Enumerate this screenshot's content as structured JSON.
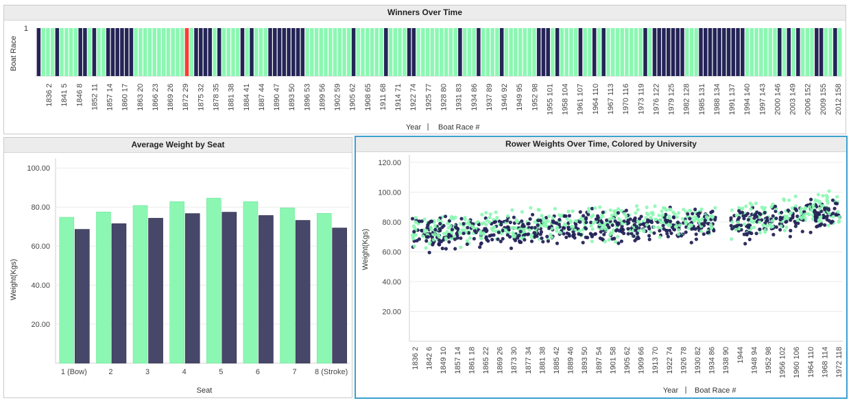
{
  "colors": {
    "cambridge": "#8bf7b2",
    "oxford": "#242457",
    "oxford_bar": "#474769",
    "highlight": "#ff3b30",
    "grid": "#ebebeb",
    "selected_border": "#3aa0d0"
  },
  "winners_panel": {
    "title": "Winners Over Time",
    "ylabel": "Boat Race",
    "ytick": "1",
    "xlabel_parts": [
      "Year",
      "|",
      "Boat Race #"
    ]
  },
  "weight_panel": {
    "title": "Average Weight by Seat",
    "ylabel": "Weight(Kgs)",
    "xlabel": "Seat",
    "yticks": [
      "100.00",
      "80.00",
      "60.00",
      "40.00",
      "20.00"
    ]
  },
  "scatter_panel": {
    "title": "Rower Weights Over Time, Colored by University",
    "ylabel": "Weight(Kgs)",
    "xlabel_parts": [
      "Year",
      "|",
      "Boat Race #"
    ],
    "yticks": [
      "120.00",
      "100.00",
      "80.00",
      "60.00",
      "40.00",
      "20.00"
    ]
  },
  "chart_data": [
    {
      "type": "bar",
      "title": "Winners Over Time",
      "ylabel": "Boat Race",
      "xlabel": "Year | Boat Race #",
      "ylim": [
        0,
        1
      ],
      "tick_labels": [
        "1836  2",
        "1841  5",
        "1846  8",
        "1852  11",
        "1857  14",
        "1860  17",
        "1863  20",
        "1866  23",
        "1869  26",
        "1872  29",
        "1875  32",
        "1878  35",
        "1881  38",
        "1884  41",
        "1887  44",
        "1890  47",
        "1893  50",
        "1896  53",
        "1899  56",
        "1902  59",
        "1905  62",
        "1908  65",
        "1911  68",
        "1914  71",
        "1922  74",
        "1925  77",
        "1928  80",
        "1931  83",
        "1934  86",
        "1937  89",
        "1946  92",
        "1949  95",
        "1952  98",
        "1955  101",
        "1958  104",
        "1961  107",
        "1964  110",
        "1967  113",
        "1970  116",
        "1973  119",
        "1976  122",
        "1979  125",
        "1982  128",
        "1985  131",
        "1988  134",
        "1991  137",
        "1994  140",
        "1997  143",
        "2000  146",
        "2003  149",
        "2006  152",
        "2009  155",
        "2012  158"
      ],
      "winners": "OCCCOCCCCOOCOCCOOOOOOCCCCCCCCCCCHCOOOOCOCCCCOCOCCCOOOOOOOOCCCCCCCCCCOCCCCCCOCCCCOOCCCCCCCCCOCCCOCCCCOCCCCCCCOOOCOCCCCOCCOCOCCCCCCCCOCOOOOOOOCCCOOOOOOOOOOCCCCCCCOCOCOCCCOOCCOC",
      "winner_codes": {
        "O": "dark navy",
        "C": "light green",
        "H": "red (highlighted)"
      },
      "value": 1
    },
    {
      "type": "bar",
      "title": "Average Weight by Seat",
      "xlabel": "Seat",
      "ylabel": "Weight(Kgs)",
      "ylim": [
        0,
        105
      ],
      "categories": [
        "1  (Bow)",
        "2",
        "3",
        "4",
        "5",
        "6",
        "7",
        "8  (Stroke)"
      ],
      "series": [
        {
          "values": [
            74.8,
            77.5,
            80.8,
            82.8,
            84.6,
            82.8,
            79.6,
            76.8
          ]
        },
        {
          "values": [
            68.6,
            71.5,
            74.3,
            76.7,
            77.4,
            75.7,
            73.2,
            69.3
          ]
        }
      ]
    },
    {
      "type": "scatter",
      "title": "Rower Weights Over Time, Colored by University",
      "xlabel": "Year | Boat Race #",
      "ylabel": "Weight(Kgs)",
      "ylim": [
        0,
        125
      ],
      "tick_labels": [
        "1836  2",
        "1842  6",
        "1849  10",
        "1857  14",
        "1861  18",
        "1865  22",
        "1869  26",
        "1873  30",
        "1877  34",
        "1881  38",
        "1885  42",
        "1889  46",
        "1893  50",
        "1897  54",
        "1901  58",
        "1905  62",
        "1909  66",
        "1913  70",
        "1922  74",
        "1926  78",
        "1930  82",
        "1934  86",
        "1938  90",
        "1944",
        "1948  94",
        "1952  98",
        "1956  102",
        "1960  106",
        "1964  110",
        "1968  114",
        "1972  118"
      ],
      "trend": [
        {
          "t": 0,
          "y": 74
        },
        {
          "t": 0.1,
          "y": 73
        },
        {
          "t": 0.2,
          "y": 74
        },
        {
          "t": 0.3,
          "y": 77
        },
        {
          "t": 0.4,
          "y": 78
        },
        {
          "t": 0.5,
          "y": 78
        },
        {
          "t": 0.6,
          "y": 79
        },
        {
          "t": 0.7,
          "y": 79
        },
        {
          "t": 0.8,
          "y": 81
        },
        {
          "t": 0.9,
          "y": 85
        },
        {
          "t": 1,
          "y": 88
        }
      ],
      "series": [
        {
          "color": "light green"
        },
        {
          "color": "dark navy"
        }
      ]
    }
  ]
}
